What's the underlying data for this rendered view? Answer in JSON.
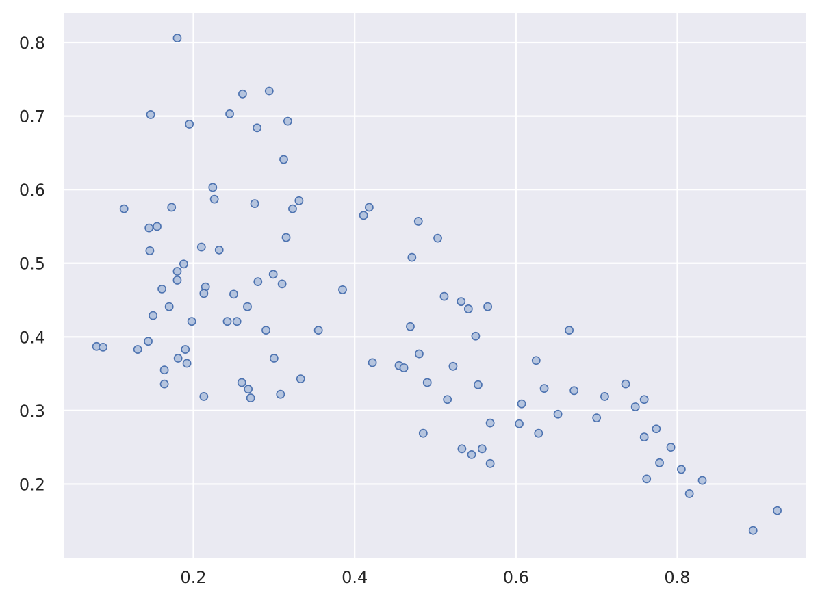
{
  "chart_data": {
    "type": "scatter",
    "title": "",
    "xlabel": "",
    "ylabel": "",
    "xlim": [
      0.04,
      0.96
    ],
    "ylim": [
      0.1,
      0.84
    ],
    "grid": true,
    "background_color": "#EAEAF2",
    "grid_color": "#FFFFFF",
    "marker_edge_color": "#4C72B0",
    "marker_face_color": "#B5C4DE",
    "x_ticks": [
      0.2,
      0.4,
      0.6,
      0.8
    ],
    "x_tick_labels": [
      "0.2",
      "0.4",
      "0.6",
      "0.8"
    ],
    "y_ticks": [
      0.2,
      0.3,
      0.4,
      0.5,
      0.6,
      0.7,
      0.8
    ],
    "y_tick_labels": [
      "0.2",
      "0.3",
      "0.4",
      "0.5",
      "0.6",
      "0.7",
      "0.8"
    ],
    "points": [
      [
        0.18,
        0.806
      ],
      [
        0.294,
        0.734
      ],
      [
        0.261,
        0.73
      ],
      [
        0.147,
        0.702
      ],
      [
        0.245,
        0.703
      ],
      [
        0.195,
        0.689
      ],
      [
        0.317,
        0.693
      ],
      [
        0.279,
        0.684
      ],
      [
        0.312,
        0.641
      ],
      [
        0.224,
        0.603
      ],
      [
        0.226,
        0.587
      ],
      [
        0.276,
        0.581
      ],
      [
        0.331,
        0.585
      ],
      [
        0.323,
        0.574
      ],
      [
        0.114,
        0.574
      ],
      [
        0.173,
        0.576
      ],
      [
        0.418,
        0.576
      ],
      [
        0.411,
        0.565
      ],
      [
        0.479,
        0.557
      ],
      [
        0.145,
        0.548
      ],
      [
        0.155,
        0.55
      ],
      [
        0.315,
        0.535
      ],
      [
        0.503,
        0.534
      ],
      [
        0.21,
        0.522
      ],
      [
        0.146,
        0.517
      ],
      [
        0.232,
        0.518
      ],
      [
        0.471,
        0.508
      ],
      [
        0.188,
        0.499
      ],
      [
        0.18,
        0.489
      ],
      [
        0.299,
        0.485
      ],
      [
        0.18,
        0.477
      ],
      [
        0.28,
        0.475
      ],
      [
        0.31,
        0.472
      ],
      [
        0.215,
        0.468
      ],
      [
        0.161,
        0.465
      ],
      [
        0.385,
        0.464
      ],
      [
        0.213,
        0.459
      ],
      [
        0.25,
        0.458
      ],
      [
        0.511,
        0.455
      ],
      [
        0.532,
        0.448
      ],
      [
        0.17,
        0.441
      ],
      [
        0.267,
        0.441
      ],
      [
        0.565,
        0.441
      ],
      [
        0.541,
        0.438
      ],
      [
        0.15,
        0.429
      ],
      [
        0.198,
        0.421
      ],
      [
        0.242,
        0.421
      ],
      [
        0.254,
        0.421
      ],
      [
        0.469,
        0.414
      ],
      [
        0.29,
        0.409
      ],
      [
        0.355,
        0.409
      ],
      [
        0.666,
        0.409
      ],
      [
        0.55,
        0.401
      ],
      [
        0.144,
        0.394
      ],
      [
        0.08,
        0.387
      ],
      [
        0.088,
        0.386
      ],
      [
        0.131,
        0.383
      ],
      [
        0.19,
        0.383
      ],
      [
        0.48,
        0.377
      ],
      [
        0.181,
        0.371
      ],
      [
        0.3,
        0.371
      ],
      [
        0.625,
        0.368
      ],
      [
        0.422,
        0.365
      ],
      [
        0.192,
        0.364
      ],
      [
        0.455,
        0.361
      ],
      [
        0.461,
        0.358
      ],
      [
        0.522,
        0.36
      ],
      [
        0.164,
        0.355
      ],
      [
        0.333,
        0.343
      ],
      [
        0.26,
        0.338
      ],
      [
        0.49,
        0.338
      ],
      [
        0.164,
        0.336
      ],
      [
        0.736,
        0.336
      ],
      [
        0.553,
        0.335
      ],
      [
        0.268,
        0.329
      ],
      [
        0.635,
        0.33
      ],
      [
        0.672,
        0.327
      ],
      [
        0.308,
        0.322
      ],
      [
        0.213,
        0.319
      ],
      [
        0.71,
        0.319
      ],
      [
        0.271,
        0.317
      ],
      [
        0.759,
        0.315
      ],
      [
        0.515,
        0.315
      ],
      [
        0.607,
        0.309
      ],
      [
        0.748,
        0.305
      ],
      [
        0.652,
        0.295
      ],
      [
        0.7,
        0.29
      ],
      [
        0.568,
        0.283
      ],
      [
        0.604,
        0.282
      ],
      [
        0.774,
        0.275
      ],
      [
        0.485,
        0.269
      ],
      [
        0.628,
        0.269
      ],
      [
        0.759,
        0.264
      ],
      [
        0.792,
        0.25
      ],
      [
        0.533,
        0.248
      ],
      [
        0.558,
        0.248
      ],
      [
        0.545,
        0.24
      ],
      [
        0.568,
        0.228
      ],
      [
        0.778,
        0.229
      ],
      [
        0.805,
        0.22
      ],
      [
        0.762,
        0.207
      ],
      [
        0.831,
        0.205
      ],
      [
        0.815,
        0.187
      ],
      [
        0.924,
        0.164
      ],
      [
        0.894,
        0.137
      ]
    ]
  }
}
